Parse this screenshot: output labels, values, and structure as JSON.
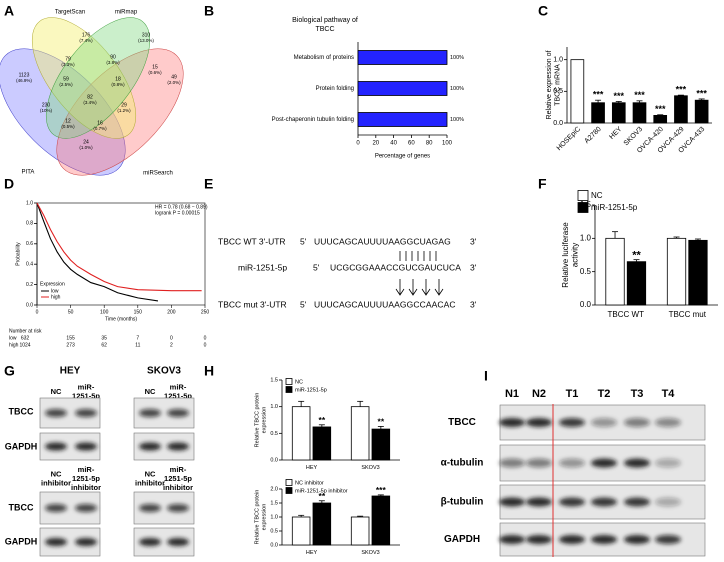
{
  "panel_labels": [
    "A",
    "B",
    "C",
    "D",
    "E",
    "F",
    "G",
    "H",
    "I"
  ],
  "venn": {
    "sets": [
      "TargetScan",
      "miRmap",
      "PITA",
      "miRSearch"
    ],
    "regions": [
      {
        "count": 176,
        "share": "(7.4%)"
      },
      {
        "count": 310,
        "share": "(13.0%)"
      },
      {
        "count": 79,
        "share": "(3.3%)"
      },
      {
        "count": 90,
        "share": "(3.8%)"
      },
      {
        "count": 15,
        "share": "(0.6%)"
      },
      {
        "count": 1123,
        "share": "(46.9%)"
      },
      {
        "count": 59,
        "share": "(2.5%)"
      },
      {
        "count": 18,
        "share": "(0.8%)"
      },
      {
        "count": 49,
        "share": "(2.0%)"
      },
      {
        "count": 230,
        "share": "(10%)"
      },
      {
        "count": 82,
        "share": "(3.4%)"
      },
      {
        "count": 29,
        "share": "(1.2%)"
      },
      {
        "count": 12,
        "share": "(0.5%)"
      },
      {
        "count": 16,
        "share": "(0.7%)"
      },
      {
        "count": 24,
        "share": "(1.0%)"
      }
    ]
  },
  "chart_data": [
    {
      "type": "hbar",
      "title": [
        "Biological pathway of",
        "TBCC"
      ],
      "categories": [
        "Metabolism of proteins",
        "Protein folding",
        "Post-chaperonin tubulin folding"
      ],
      "values": [
        100,
        100,
        100
      ],
      "value_labels": [
        "100%",
        "100%",
        "100%"
      ],
      "color": "#2323ff",
      "xlim": [
        0,
        100
      ],
      "xticks": [
        0,
        20,
        40,
        60,
        80,
        100
      ],
      "xlabel": "Percentage of genes"
    },
    {
      "type": "bar",
      "categories": [
        "HOSEpiC",
        "A2780",
        "HEY",
        "SKOV3",
        "OVCA-420",
        "OVCA-429",
        "OVCA-433"
      ],
      "values": [
        1.0,
        0.32,
        0.32,
        0.32,
        0.12,
        0.43,
        0.36
      ],
      "errors": [
        null,
        0.04,
        0.02,
        0.03,
        0.01,
        0.01,
        0.02
      ],
      "annotations": [
        null,
        "***",
        "***",
        "***",
        "***",
        "***",
        "***"
      ],
      "colors": [
        "#ffffff",
        "#000000",
        "#000000",
        "#000000",
        "#000000",
        "#000000",
        "#000000"
      ],
      "ylim": [
        0,
        1.2
      ],
      "yticks": [
        {
          "value": 0,
          "label": "0.0"
        },
        {
          "value": 0.5,
          "label": "0.5"
        },
        {
          "value": 1,
          "label": "1.0"
        }
      ],
      "ylabel": [
        "Relative expression of",
        "TBCC mRNA"
      ]
    },
    {
      "type": "km",
      "series": [
        {
          "name": "low",
          "color": "#000000",
          "x": [
            0,
            10,
            20,
            30,
            40,
            50,
            60,
            80,
            100,
            120,
            150,
            180
          ],
          "values": [
            1,
            0.82,
            0.65,
            0.52,
            0.42,
            0.35,
            0.3,
            0.22,
            0.18,
            0.12,
            0.07,
            0.04
          ]
        },
        {
          "name": "high",
          "color": "#e02020",
          "x": [
            0,
            10,
            20,
            30,
            40,
            50,
            60,
            80,
            100,
            120,
            150,
            200,
            245
          ],
          "values": [
            1,
            0.88,
            0.74,
            0.62,
            0.52,
            0.44,
            0.38,
            0.3,
            0.23,
            0.18,
            0.15,
            0.14,
            0.14
          ]
        }
      ],
      "legend_title": "Expression",
      "xlim": [
        0,
        250
      ],
      "xticks": [
        0,
        50,
        100,
        150,
        200,
        250
      ],
      "ylim": [
        0,
        1
      ],
      "yticks": [
        {
          "value": 0,
          "label": "0.0"
        },
        {
          "value": 0.2,
          "label": "0.2"
        },
        {
          "value": 0.4,
          "label": "0.4"
        },
        {
          "value": 0.6,
          "label": "0.6"
        },
        {
          "value": 0.8,
          "label": "0.8"
        },
        {
          "value": 1,
          "label": "1.0"
        }
      ],
      "xlabel": "Time (months)",
      "ylabel": [
        "Probability"
      ],
      "annotations": [
        "HR = 0.78 (0.68 − 0.89)",
        "logrank P = 0.00015"
      ],
      "risk_table": {
        "title": "Number at risk",
        "rows": [
          {
            "name": "low",
            "counts": [
              632,
              155,
              35,
              7,
              0,
              0
            ]
          },
          {
            "name": "high",
            "counts": [
              1024,
              273,
              62,
              11,
              2,
              0
            ]
          }
        ]
      }
    },
    {
      "type": "grouped_bar",
      "categories": [
        "TBCC WT",
        "TBCC mut"
      ],
      "series": [
        {
          "name": "NC",
          "color": "#ffffff",
          "values": [
            1.0,
            1.0
          ],
          "errors": [
            0.1,
            0.02
          ],
          "annotations": [
            null,
            null
          ]
        },
        {
          "name": "miR-1251-5p",
          "color": "#000000",
          "values": [
            0.65,
            0.97
          ],
          "errors": [
            0.03,
            0.02
          ],
          "annotations": [
            "**",
            null
          ]
        }
      ],
      "ylim": [
        0,
        1.5
      ],
      "yticks": [
        {
          "value": 0,
          "label": "0.0"
        },
        {
          "value": 0.5,
          "label": "0.5"
        },
        {
          "value": 1,
          "label": "1.0"
        },
        {
          "value": 1.5,
          "label": "1.5"
        }
      ],
      "ylabel": [
        "Relative luciferase",
        "activity"
      ]
    },
    {
      "type": "grouped_bar",
      "categories": [
        "HEY",
        "SKOV3"
      ],
      "series": [
        {
          "name": "NC",
          "color": "#ffffff",
          "values": [
            1.0,
            1.0
          ],
          "errors": [
            0.1,
            0.1
          ],
          "annotations": [
            null,
            null
          ]
        },
        {
          "name": "miR-1251-5p",
          "color": "#000000",
          "values": [
            0.62,
            0.58
          ],
          "errors": [
            0.04,
            0.05
          ],
          "annotations": [
            "**",
            "**"
          ]
        }
      ],
      "ylim": [
        0,
        1.5
      ],
      "yticks": [
        {
          "value": 0,
          "label": "0.0"
        },
        {
          "value": 0.5,
          "label": "0.5"
        },
        {
          "value": 1,
          "label": "1.0"
        },
        {
          "value": 1.5,
          "label": "1.5"
        }
      ],
      "ylabel": [
        "Relative TBCC protein",
        "expression"
      ]
    },
    {
      "type": "grouped_bar",
      "categories": [
        "HEY",
        "SKOV3"
      ],
      "series": [
        {
          "name": "NC inhibitor",
          "color": "#ffffff",
          "values": [
            1.0,
            1.0
          ],
          "errors": [
            0.06,
            0.03
          ],
          "annotations": [
            null,
            null
          ]
        },
        {
          "name": "miR-1251-5p inhibitor",
          "color": "#000000",
          "values": [
            1.5,
            1.75
          ],
          "errors": [
            0.08,
            0.04
          ],
          "annotations": [
            "**",
            "***"
          ]
        }
      ],
      "ylim": [
        0,
        2
      ],
      "yticks": [
        {
          "value": 0,
          "label": "0.0"
        },
        {
          "value": 0.5,
          "label": "0.5"
        },
        {
          "value": 1,
          "label": "1.0"
        },
        {
          "value": 1.5,
          "label": "1.5"
        },
        {
          "value": 2,
          "label": "2.0"
        }
      ],
      "ylabel": [
        "Relative TBCC protein",
        "expression"
      ]
    }
  ],
  "sequence": {
    "rows": [
      {
        "label": "TBCC WT 3'-UTR",
        "five": "5'",
        "seq": "UUUCAGCAUUUUAAGGCUAGAG",
        "three": "3'"
      },
      {
        "label": "miR-1251-5p",
        "five": "5'",
        "seq": "UCGCGGAAACCGUCGAUCUCA",
        "three": "3'"
      },
      {
        "label": "TBCC mut 3'-UTR",
        "five": "5'",
        "seq": "UUUCAGCAUUUUAAGGCCAACAC",
        "three": "3'"
      }
    ]
  },
  "blot_g": {
    "cell_lines": [
      "HEY",
      "SKOV3"
    ],
    "upper_lanes": [
      [
        "NC"
      ],
      [
        "miR-",
        "1251-5p"
      ]
    ],
    "lower_lanes": [
      [
        "NC",
        "inhibitor"
      ],
      [
        "miR-",
        "1251-5p",
        "inhibitor"
      ]
    ],
    "rows": [
      "TBCC",
      "GAPDH"
    ]
  },
  "blot_i": {
    "lanes": [
      "N1",
      "N2",
      "T1",
      "T2",
      "T3",
      "T4"
    ],
    "rows": [
      "TBCC",
      "α-tubulin",
      "β-tubulin",
      "GAPDH"
    ]
  }
}
